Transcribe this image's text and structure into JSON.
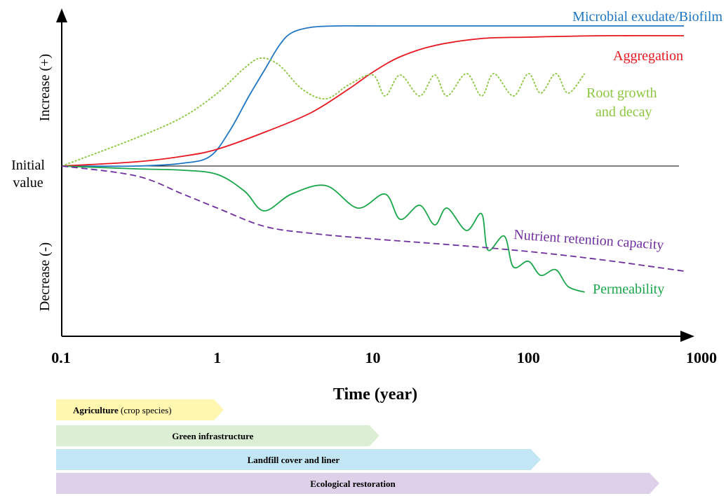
{
  "chart_data": {
    "type": "line",
    "x_scale": "log",
    "xlim": [
      0.1,
      1000
    ],
    "ylim": [
      -1,
      1
    ],
    "xlabel": "Time (year)",
    "xticks": [
      "0.1",
      "1",
      "10",
      "100",
      "1000"
    ],
    "ylabel_top": "Increase (+)",
    "ylabel_bottom": "Decrease (-)",
    "baseline_label_line1": "Initial",
    "baseline_label_line2": "value",
    "series": [
      {
        "name": "Microbial exudate/Biofilm",
        "color": "#1f77c4",
        "style": "solid",
        "points": [
          [
            0.1,
            0
          ],
          [
            0.3,
            0
          ],
          [
            0.6,
            0.02
          ],
          [
            0.9,
            0.07
          ],
          [
            1.2,
            0.25
          ],
          [
            1.6,
            0.5
          ],
          [
            2.0,
            0.68
          ],
          [
            2.5,
            0.86
          ],
          [
            3.0,
            0.95
          ],
          [
            4.0,
            0.99
          ],
          [
            6.0,
            1.0
          ],
          [
            10,
            1.0
          ],
          [
            100,
            1.0
          ],
          [
            1000,
            1.0
          ]
        ]
      },
      {
        "name": "Aggregation",
        "color": "#e8161e",
        "style": "solid",
        "points": [
          [
            0.1,
            0
          ],
          [
            0.3,
            0.03
          ],
          [
            0.6,
            0.07
          ],
          [
            1.0,
            0.12
          ],
          [
            2.0,
            0.24
          ],
          [
            4.0,
            0.38
          ],
          [
            7.0,
            0.55
          ],
          [
            10,
            0.67
          ],
          [
            15,
            0.78
          ],
          [
            25,
            0.86
          ],
          [
            50,
            0.91
          ],
          [
            100,
            0.92
          ],
          [
            300,
            0.93
          ],
          [
            1000,
            0.93
          ]
        ]
      },
      {
        "name": "Root growth and decay",
        "color": "#8cc63f",
        "style": "dotted",
        "points": [
          [
            0.1,
            0
          ],
          [
            0.3,
            0.2
          ],
          [
            0.6,
            0.35
          ],
          [
            1.0,
            0.52
          ],
          [
            1.5,
            0.7
          ],
          [
            1.9,
            0.77
          ],
          [
            2.5,
            0.72
          ],
          [
            3.5,
            0.55
          ],
          [
            5.0,
            0.48
          ],
          [
            7.0,
            0.58
          ],
          [
            10,
            0.65
          ],
          [
            12,
            0.5
          ],
          [
            15,
            0.65
          ],
          [
            20,
            0.5
          ],
          [
            25,
            0.65
          ],
          [
            30,
            0.5
          ],
          [
            40,
            0.66
          ],
          [
            50,
            0.5
          ],
          [
            60,
            0.66
          ],
          [
            80,
            0.5
          ],
          [
            100,
            0.66
          ],
          [
            120,
            0.52
          ],
          [
            150,
            0.66
          ],
          [
            180,
            0.52
          ],
          [
            230,
            0.66
          ]
        ]
      },
      {
        "name": "Permeability",
        "color": "#1aa64a",
        "style": "solid",
        "points": [
          [
            0.1,
            0
          ],
          [
            0.3,
            -0.02
          ],
          [
            0.6,
            -0.03
          ],
          [
            1.0,
            -0.06
          ],
          [
            1.5,
            -0.18
          ],
          [
            2.0,
            -0.32
          ],
          [
            3.0,
            -0.2
          ],
          [
            5.0,
            -0.14
          ],
          [
            8.0,
            -0.3
          ],
          [
            12,
            -0.2
          ],
          [
            15,
            -0.38
          ],
          [
            20,
            -0.28
          ],
          [
            25,
            -0.42
          ],
          [
            30,
            -0.3
          ],
          [
            40,
            -0.46
          ],
          [
            50,
            -0.34
          ],
          [
            55,
            -0.6
          ],
          [
            70,
            -0.5
          ],
          [
            80,
            -0.72
          ],
          [
            100,
            -0.68
          ],
          [
            120,
            -0.78
          ],
          [
            150,
            -0.74
          ],
          [
            180,
            -0.86
          ],
          [
            230,
            -0.9
          ]
        ]
      },
      {
        "name": "Nutrient retention capacity",
        "color": "#7030a0",
        "style": "dashed",
        "points": [
          [
            0.1,
            0
          ],
          [
            0.3,
            -0.07
          ],
          [
            0.6,
            -0.2
          ],
          [
            1.0,
            -0.3
          ],
          [
            2.0,
            -0.43
          ],
          [
            4.0,
            -0.48
          ],
          [
            10,
            -0.52
          ],
          [
            30,
            -0.56
          ],
          [
            100,
            -0.61
          ],
          [
            300,
            -0.67
          ],
          [
            1000,
            -0.75
          ]
        ]
      }
    ],
    "applications": [
      {
        "label_bold": "Agriculture",
        "label_rest": " (crop species)",
        "end_year": 1.1,
        "color": "#fff6b0"
      },
      {
        "label_bold": "Green infrastructure",
        "label_rest": "",
        "end_year": 11,
        "color": "#dcefd4"
      },
      {
        "label_bold": "Landfill cover and liner",
        "label_rest": "",
        "end_year": 120,
        "color": "#c3e6f5"
      },
      {
        "label_bold": "Ecological restoration",
        "label_rest": "",
        "end_year": 760,
        "color": "#ddd0e8"
      }
    ]
  }
}
